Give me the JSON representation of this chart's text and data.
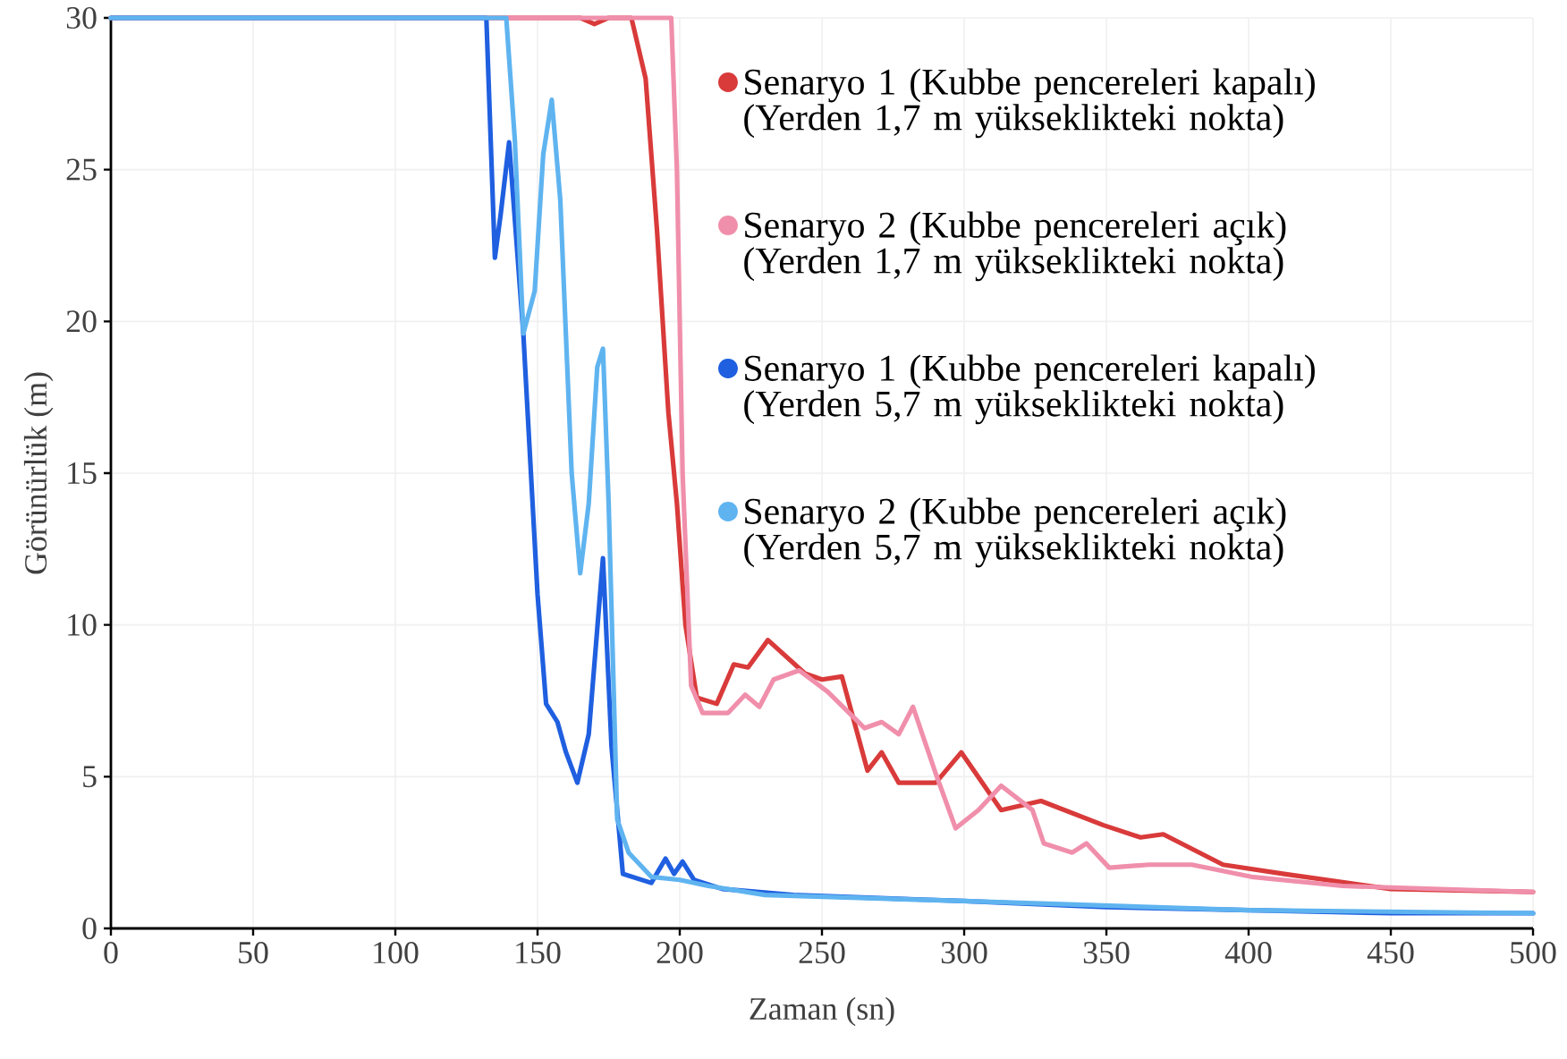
{
  "chart_data": {
    "type": "line",
    "xlabel": "Zaman (sn)",
    "ylabel": "Görünürlük (m)",
    "xlim": [
      0,
      500
    ],
    "ylim": [
      0,
      30
    ],
    "xticks": [
      0,
      50,
      100,
      150,
      200,
      250,
      300,
      350,
      400,
      450,
      500
    ],
    "yticks": [
      0,
      5,
      10,
      15,
      20,
      25,
      30
    ],
    "grid": true,
    "legend": "top right",
    "marker": "none",
    "line_style": "solid",
    "series": [
      {
        "name": "Senaryo 1 (Kubbe pencereleri kapalı) (Yerden 1,7 m yükseklikteki nokta)",
        "color": "#d93a3a",
        "x": [
          0,
          165,
          170,
          175,
          183,
          188,
          192,
          196,
          199,
          202,
          206,
          213,
          219,
          224,
          231,
          244,
          250,
          257,
          266,
          271,
          277,
          290,
          299,
          313,
          327,
          349,
          362,
          370,
          391,
          412,
          450,
          500
        ],
        "values": [
          30,
          30,
          29.8,
          30,
          30,
          28,
          23,
          17,
          14,
          10,
          7.6,
          7.4,
          8.7,
          8.6,
          9.5,
          8.4,
          8.2,
          8.3,
          5.2,
          5.8,
          4.8,
          4.8,
          5.8,
          3.9,
          4.2,
          3.4,
          3.0,
          3.1,
          2.1,
          1.8,
          1.3,
          1.2
        ]
      },
      {
        "name": "Senaryo 2 (Kubbe pencereleri açık) (Yerden 1,7 m yükseklikteki nokta)",
        "color": "#f08fab",
        "x": [
          0,
          197,
          199,
          201,
          204,
          208,
          217,
          223,
          228,
          233,
          242,
          252,
          265,
          271,
          277,
          282,
          290,
          297,
          305,
          313,
          324,
          328,
          338,
          343,
          351,
          365,
          380,
          401,
          433,
          500
        ],
        "values": [
          30,
          30,
          25,
          15,
          8,
          7.1,
          7.1,
          7.7,
          7.3,
          8.2,
          8.5,
          7.8,
          6.6,
          6.8,
          6.4,
          7.3,
          5.1,
          3.3,
          3.9,
          4.7,
          3.9,
          2.8,
          2.5,
          2.8,
          2.0,
          2.1,
          2.1,
          1.7,
          1.4,
          1.2
        ]
      },
      {
        "name": "Senaryo 1 (Kubbe pencereleri kapalı) (Yerden 5,7 m yükseklikteki nokta)",
        "color": "#1f5fe0",
        "x": [
          0,
          132,
          135,
          137,
          140,
          145,
          150,
          153,
          157,
          160,
          164,
          168,
          173,
          176,
          180,
          190,
          195,
          198,
          201,
          205,
          215,
          240,
          300,
          350,
          400,
          450,
          500
        ],
        "values": [
          30,
          30,
          22.1,
          23.5,
          25.9,
          19.6,
          11.0,
          7.4,
          6.8,
          5.8,
          4.8,
          6.4,
          12.2,
          6,
          1.8,
          1.5,
          2.3,
          1.8,
          2.2,
          1.6,
          1.3,
          1.1,
          0.9,
          0.7,
          0.6,
          0.5,
          0.5
        ]
      },
      {
        "name": "Senaryo 2 (Kubbe pencereleri açık) (Yerden 5,7 m yükseklikteki nokta)",
        "color": "#5fb4f0",
        "x": [
          0,
          139,
          142,
          145,
          149,
          152,
          155,
          158,
          162,
          165,
          168,
          171,
          173,
          175,
          178,
          182,
          190,
          200,
          210,
          230,
          300,
          400,
          500
        ],
        "values": [
          30,
          30,
          26,
          19.6,
          21,
          25.5,
          27.3,
          24,
          15,
          11.7,
          14,
          18.5,
          19.1,
          14,
          3.6,
          2.5,
          1.7,
          1.6,
          1.4,
          1.1,
          0.9,
          0.6,
          0.5
        ]
      }
    ]
  }
}
